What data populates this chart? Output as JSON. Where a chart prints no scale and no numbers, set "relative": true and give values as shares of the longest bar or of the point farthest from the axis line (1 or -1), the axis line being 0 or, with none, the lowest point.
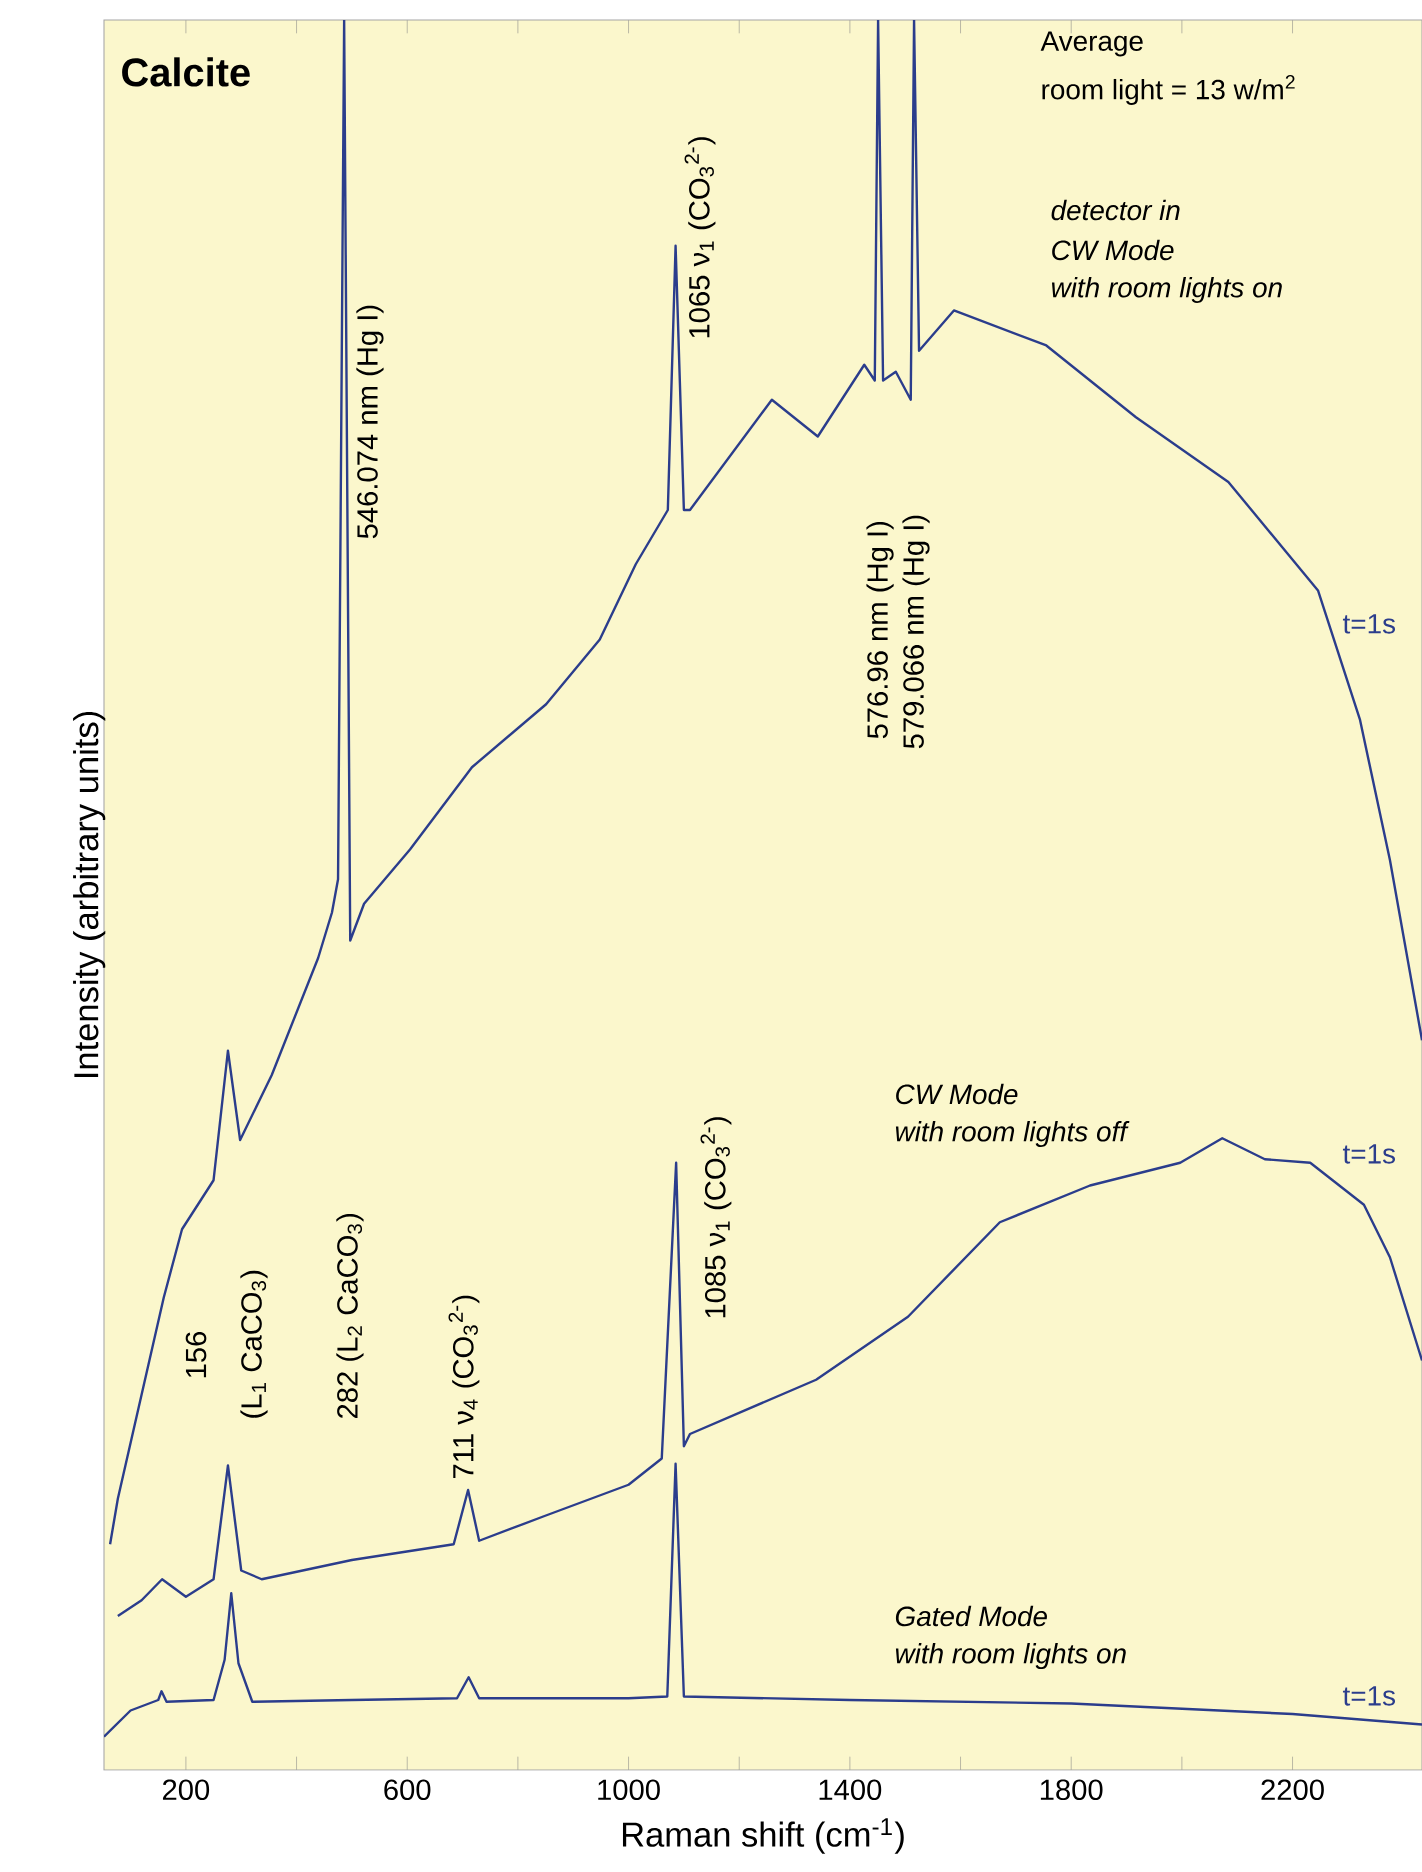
{
  "chart_data": {
    "type": "line",
    "title": "Calcite",
    "xlabel": "Raman shift (cm$^{-1}$)",
    "ylabel": "Intensity (arbitrary units)",
    "relative": true,
    "xlim": [
      52,
      2434
    ],
    "xticks": [
      {
        "value": 200,
        "label": "200"
      },
      {
        "value": 400,
        "label": null
      },
      {
        "value": 600,
        "label": "600"
      },
      {
        "value": 800,
        "label": null
      },
      {
        "value": 1000,
        "label": "1000"
      },
      {
        "value": 1200,
        "label": null
      },
      {
        "value": 1400,
        "label": "1400"
      },
      {
        "value": 1600,
        "label": null
      },
      {
        "value": 1800,
        "label": "1800"
      },
      {
        "value": 2000,
        "label": null
      },
      {
        "value": 2200,
        "label": "2200"
      }
    ],
    "series": [
      {
        "color": "#2b3d8c",
        "x": [
          63,
          77,
          160,
          193,
          250,
          276,
          298,
          355,
          439,
          464,
          475,
          486,
          497,
          522,
          605,
          717,
          851,
          948,
          1013,
          1071,
          1085,
          1100,
          1111,
          1259,
          1342,
          1426,
          1445,
          1451,
          1460,
          1483,
          1510,
          1516,
          1525,
          1588,
          1755,
          1917,
          2084,
          2246,
          2322,
          2376,
          2434
        ],
        "values": [
          0.129,
          0.155,
          0.27,
          0.309,
          0.337,
          0.411,
          0.36,
          0.397,
          0.464,
          0.49,
          0.509,
          1.0,
          0.474,
          0.495,
          0.526,
          0.573,
          0.609,
          0.646,
          0.689,
          0.72,
          0.871,
          0.72,
          0.72,
          0.783,
          0.762,
          0.803,
          0.794,
          1.0,
          0.794,
          0.799,
          0.783,
          1.0,
          0.811,
          0.834,
          0.814,
          0.773,
          0.736,
          0.674,
          0.6,
          0.52,
          0.417
        ]
      },
      {
        "color": "#2b3d8c",
        "x": [
          77,
          120,
          157,
          200,
          250,
          276,
          300,
          337,
          500,
          684,
          710,
          730,
          847,
          1000,
          1060,
          1086,
          1100,
          1111,
          1339,
          1505,
          1671,
          1834,
          1997,
          2073,
          2150,
          2232,
          2329,
          2376,
          2434
        ],
        "values": [
          0.088,
          0.097,
          0.109,
          0.099,
          0.109,
          0.174,
          0.114,
          0.109,
          0.12,
          0.129,
          0.16,
          0.131,
          0.145,
          0.163,
          0.178,
          0.347,
          0.185,
          0.192,
          0.223,
          0.259,
          0.313,
          0.334,
          0.347,
          0.361,
          0.349,
          0.347,
          0.323,
          0.293,
          0.234
        ]
      },
      {
        "color": "#2b3d8c",
        "x": [
          52,
          100,
          150,
          156,
          165,
          250,
          270,
          282,
          295,
          320,
          500,
          690,
          711,
          730,
          1000,
          1070,
          1085,
          1100,
          1400,
          1800,
          2200,
          2434
        ],
        "values": [
          0.019,
          0.034,
          0.04,
          0.045,
          0.039,
          0.04,
          0.063,
          0.101,
          0.061,
          0.039,
          0.04,
          0.041,
          0.053,
          0.041,
          0.041,
          0.042,
          0.175,
          0.042,
          0.04,
          0.038,
          0.032,
          0.026
        ]
      }
    ],
    "annotations": [
      "546.074 nm (Hg I)",
      "1065 ν$_{1}$ (CO$_{3}$$^{2-}$)",
      "576.96 nm (Hg I)",
      "579.066 nm (Hg I)",
      "156",
      "(L$_{1}$ CaCO$_{3}$)",
      "282 (L$_{2}$ CaCO$_{3}$)",
      "711 ν$_{4}$ (CO$_{3}$$^{2-}$)",
      "1085 ν$_{1}$ (CO$_{3}$$^{2-}$)",
      "Average",
      "room light = 13 w/m$^{2}$",
      "detector in",
      "CW Mode",
      "with room lights on",
      "CW Mode",
      "with room lights off",
      "Gated Mode",
      "with room lights on",
      "t=1s",
      "t=1s",
      "t=1s"
    ]
  }
}
